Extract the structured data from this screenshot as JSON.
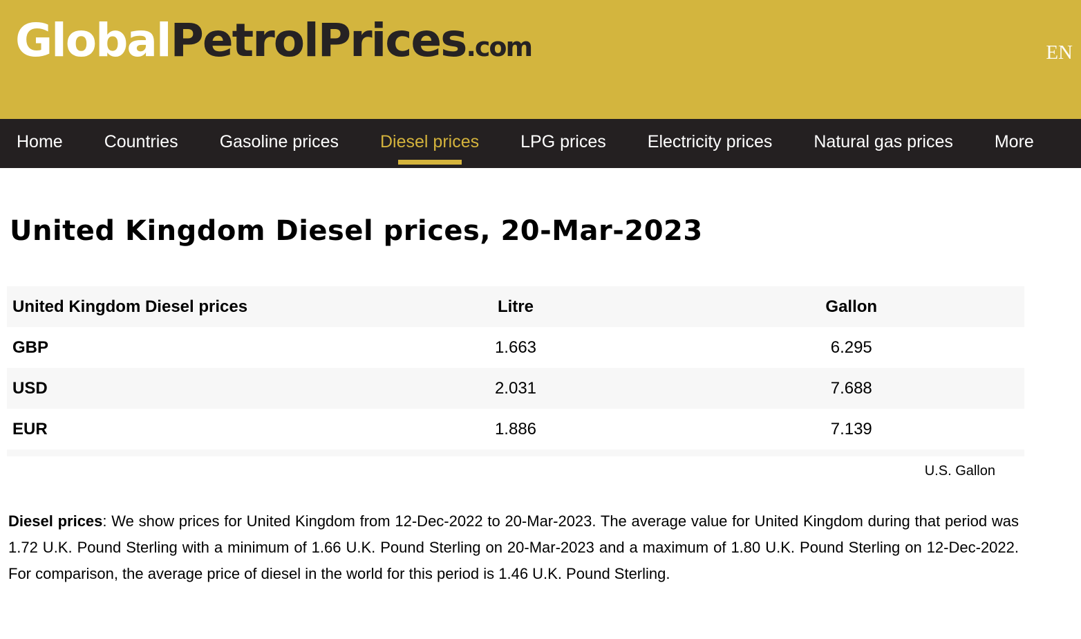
{
  "header": {
    "logo_part_global": "Global",
    "logo_part_petrol": "PetrolPrices",
    "logo_part_com": ".com",
    "language": "EN",
    "background_color": "#d3b53e"
  },
  "nav": {
    "background_color": "#242021",
    "active_color": "#d4b33c",
    "items": [
      {
        "label": "Home",
        "active": false
      },
      {
        "label": "Countries",
        "active": false
      },
      {
        "label": "Gasoline prices",
        "active": false
      },
      {
        "label": "Diesel prices",
        "active": true
      },
      {
        "label": "LPG prices",
        "active": false
      },
      {
        "label": "Electricity prices",
        "active": false
      },
      {
        "label": "Natural gas prices",
        "active": false
      },
      {
        "label": "More",
        "active": false
      }
    ]
  },
  "page": {
    "title": "United Kingdom Diesel prices, 20-Mar-2023"
  },
  "table": {
    "headers": {
      "label": "United Kingdom Diesel prices",
      "litre": "Litre",
      "gallon": "Gallon"
    },
    "rows": [
      {
        "currency": "GBP",
        "litre": "1.663",
        "gallon": "6.295"
      },
      {
        "currency": "USD",
        "litre": "2.031",
        "gallon": "7.688"
      },
      {
        "currency": "EUR",
        "litre": "1.886",
        "gallon": "7.139"
      }
    ],
    "footnote": "U.S. Gallon",
    "stripe_color": "#f7f7f7"
  },
  "description": {
    "lead": "Diesel prices",
    "body": ": We show prices for United Kingdom from 12-Dec-2022 to 20-Mar-2023. The average value for United Kingdom during that period was 1.72 U.K. Pound Sterling with a minimum of 1.66 U.K. Pound Sterling on 20-Mar-2023 and a maximum of 1.80 U.K. Pound Sterling on 12-Dec-2022. For comparison, the average price of diesel in the world for this period is 1.46 U.K. Pound Sterling."
  }
}
